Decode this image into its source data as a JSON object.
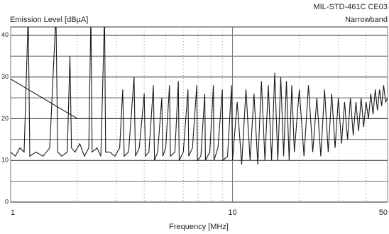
{
  "chart_data": {
    "type": "line",
    "title": "Emission Level [dBµA]",
    "subtitle": [
      "MIL-STD-461C CE03",
      "Narrowband"
    ],
    "x_label": "Frequency [MHz]",
    "log_x": true,
    "xlim": [
      1,
      50
    ],
    "xticks": [
      1,
      10,
      50
    ],
    "xminorticks": [
      2,
      3,
      4,
      5,
      6,
      7,
      8,
      9,
      20,
      30,
      40
    ],
    "ylim": [
      0,
      42
    ],
    "yticks": [
      0,
      10,
      20,
      30,
      40
    ],
    "yminorticks": [
      5,
      15,
      25,
      35
    ],
    "grid": true,
    "series": [
      {
        "color": "#1a1a1a",
        "x": [
          1.0,
          1.05,
          1.1,
          1.15,
          1.2,
          1.22,
          1.3,
          1.4,
          1.5,
          1.6,
          1.63,
          1.7,
          1.8,
          1.85,
          1.88,
          1.95,
          2.05,
          2.15,
          2.25,
          2.3,
          2.33,
          2.45,
          2.55,
          2.65,
          2.68,
          2.8,
          2.95,
          3.1,
          3.2,
          3.25,
          3.4,
          3.6,
          3.65,
          3.8,
          4.0,
          4.05,
          4.2,
          4.4,
          4.45,
          4.6,
          4.8,
          4.85,
          5.0,
          5.2,
          5.25,
          5.5,
          5.7,
          5.75,
          6.0,
          6.3,
          6.35,
          6.6,
          6.9,
          6.95,
          7.2,
          7.5,
          7.55,
          7.9,
          8.2,
          8.25,
          8.6,
          9.0,
          9.05,
          9.5,
          9.9,
          10.0,
          10.5,
          11,
          11.5,
          12,
          12.5,
          13,
          13.5,
          14,
          14.5,
          15,
          15.5,
          16,
          16.5,
          17,
          17.5,
          18,
          18.5,
          19,
          20,
          21,
          22,
          23,
          24,
          25,
          26,
          27,
          28,
          29,
          30,
          31,
          32,
          33,
          34,
          35,
          36,
          37,
          38,
          39,
          40,
          41,
          42,
          43,
          44,
          45,
          46,
          47,
          48,
          49,
          50
        ],
        "values": [
          12,
          11,
          13,
          12,
          45,
          11,
          12,
          11,
          13,
          45,
          12,
          11,
          12,
          35,
          13,
          12,
          14,
          11,
          13,
          45,
          12,
          13,
          11,
          45,
          12,
          12,
          11,
          13,
          27,
          11,
          12,
          30,
          11,
          13,
          26,
          11,
          12,
          28,
          10,
          12,
          25,
          11,
          13,
          28,
          11,
          12,
          29,
          10,
          12,
          27,
          11,
          13,
          28,
          10,
          11,
          26,
          10,
          12,
          28,
          10,
          13,
          27,
          10,
          11,
          28,
          10,
          24,
          9,
          27,
          10,
          26,
          9,
          29,
          10,
          28,
          10,
          31,
          10,
          30,
          11,
          29,
          10,
          28,
          12,
          27,
          11,
          28,
          12,
          25,
          11,
          27,
          12,
          26,
          13,
          25,
          14,
          24,
          15,
          25,
          16,
          24,
          17,
          25,
          18,
          24,
          20,
          26,
          21,
          27,
          22,
          27,
          23,
          28,
          24,
          25
        ]
      },
      {
        "color": "#1a1a1a",
        "x": [
          1,
          2,
          50
        ],
        "values": [
          29.5,
          20,
          20
        ]
      }
    ]
  }
}
